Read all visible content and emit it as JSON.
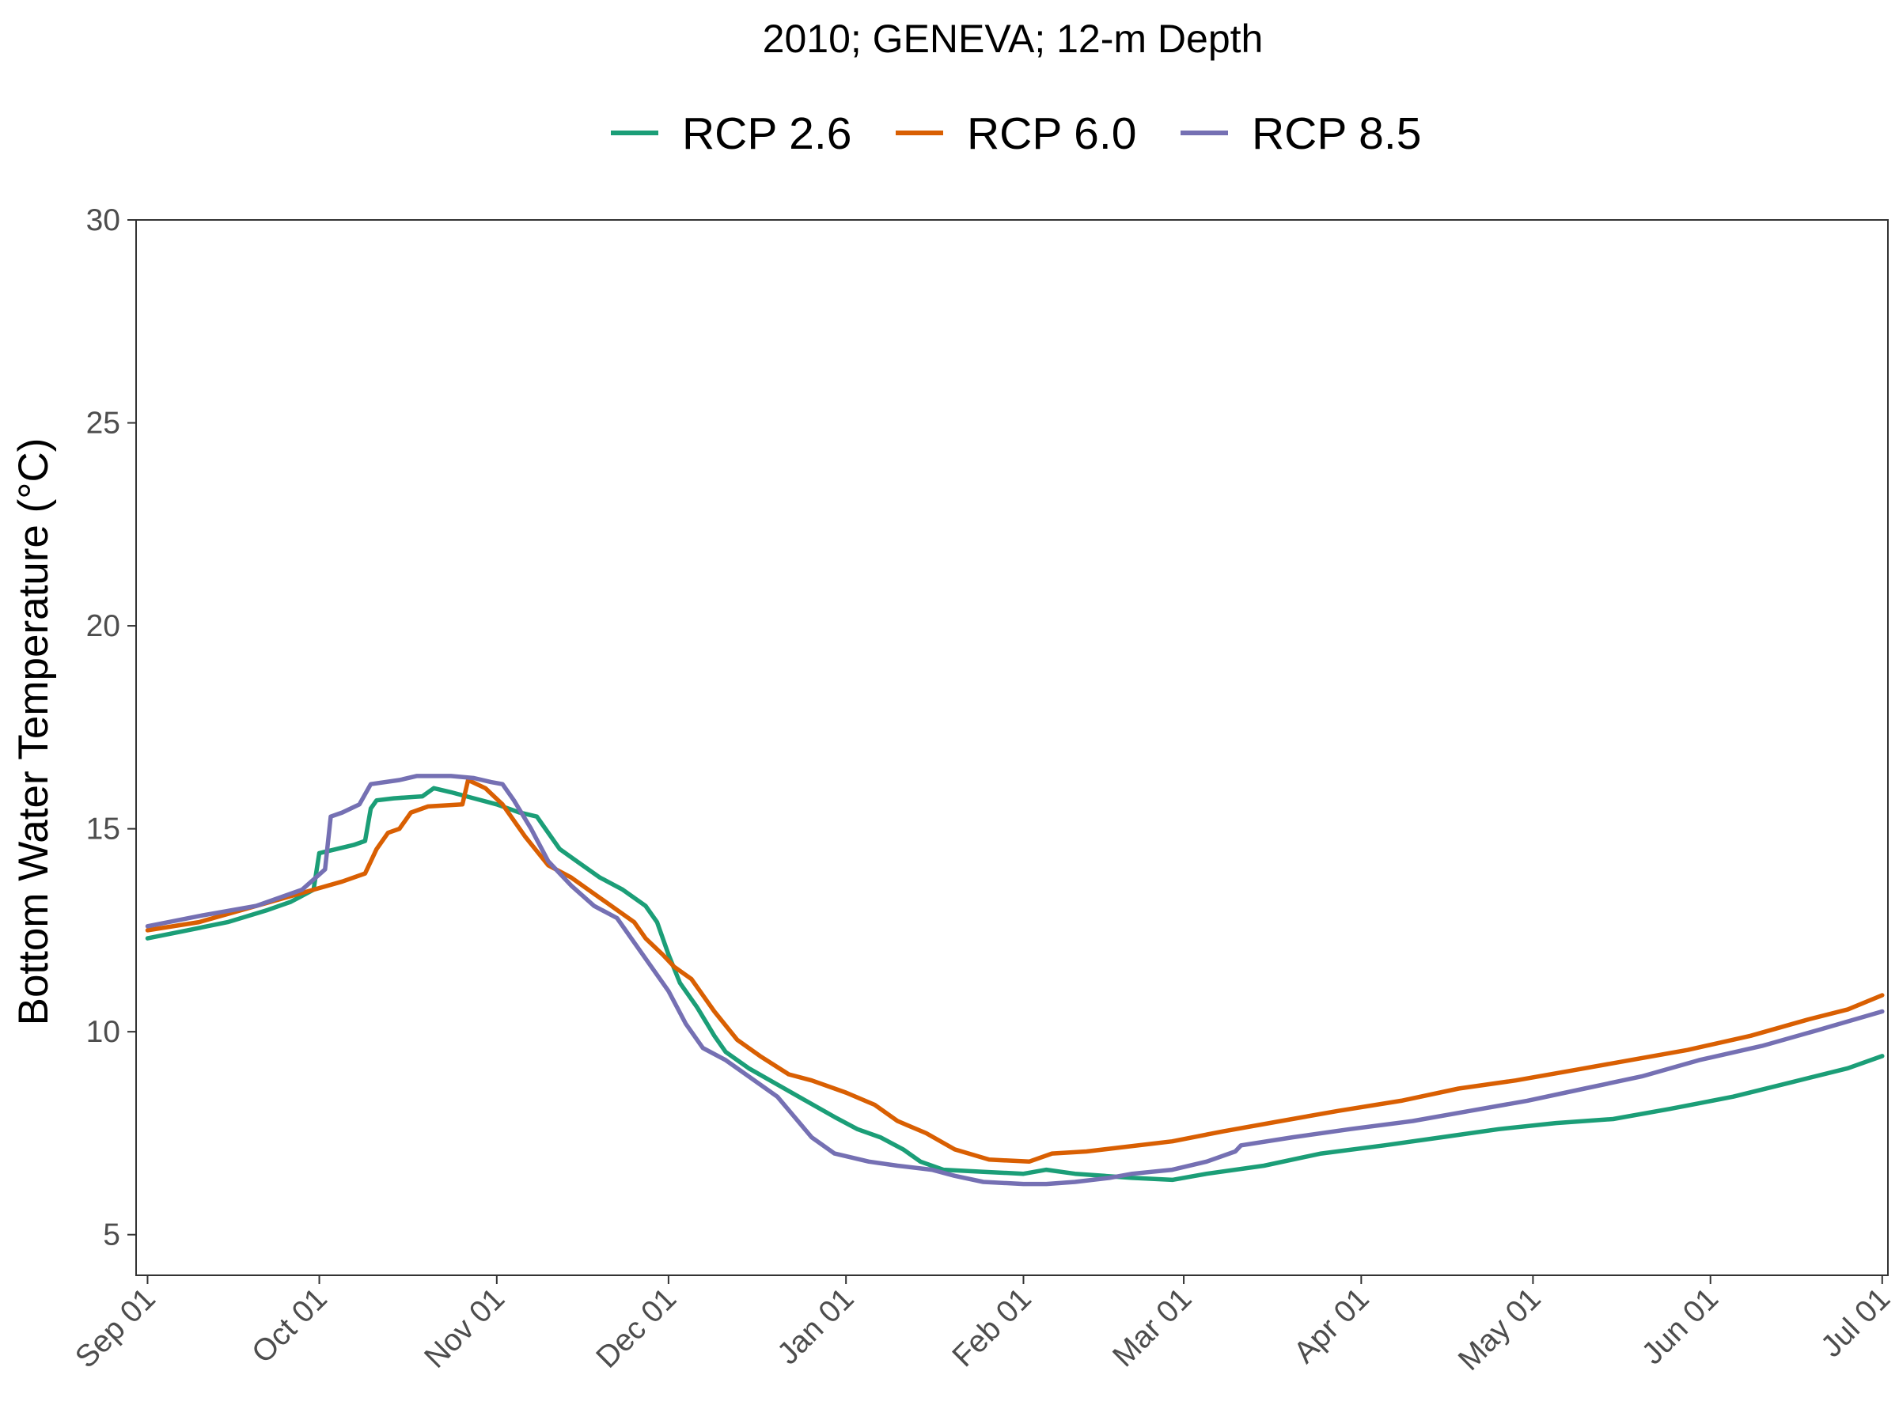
{
  "chart_data": {
    "type": "line",
    "title": "2010; GENEVA; 12-m Depth",
    "xlabel": "",
    "ylabel": "Bottom Water Temperature (°C)",
    "ylim": [
      4,
      30
    ],
    "xlim": [
      "2010-08-30",
      "2011-07-02"
    ],
    "yticks": [
      5,
      10,
      15,
      20,
      25,
      30
    ],
    "xtick_dates": [
      "2010-09-01",
      "2010-10-01",
      "2010-11-01",
      "2010-12-01",
      "2011-01-01",
      "2011-02-01",
      "2011-03-01",
      "2011-04-01",
      "2011-05-01",
      "2011-06-01",
      "2011-07-01"
    ],
    "xtick_labels": [
      "Sep 01",
      "Oct 01",
      "Nov 01",
      "Dec 01",
      "Jan 01",
      "Feb 01",
      "Mar 01",
      "Apr 01",
      "May 01",
      "Jun 01",
      "Jul 01"
    ],
    "grid": false,
    "legend_position": "top",
    "series": [
      {
        "name": "RCP 2.6",
        "color": "#1b9e77",
        "points": [
          [
            "2010-09-01",
            12.3
          ],
          [
            "2010-09-08",
            12.5
          ],
          [
            "2010-09-15",
            12.7
          ],
          [
            "2010-09-22",
            13.0
          ],
          [
            "2010-09-26",
            13.2
          ],
          [
            "2010-09-30",
            13.5
          ],
          [
            "2010-10-01",
            14.4
          ],
          [
            "2010-10-07",
            14.6
          ],
          [
            "2010-10-09",
            14.7
          ],
          [
            "2010-10-10",
            15.5
          ],
          [
            "2010-10-11",
            15.7
          ],
          [
            "2010-10-14",
            15.75
          ],
          [
            "2010-10-19",
            15.8
          ],
          [
            "2010-10-21",
            16.0
          ],
          [
            "2010-10-24",
            15.9
          ],
          [
            "2010-10-28",
            15.75
          ],
          [
            "2010-11-01",
            15.6
          ],
          [
            "2010-11-05",
            15.4
          ],
          [
            "2010-11-08",
            15.3
          ],
          [
            "2010-11-09",
            15.1
          ],
          [
            "2010-11-12",
            14.5
          ],
          [
            "2010-11-15",
            14.2
          ],
          [
            "2010-11-19",
            13.8
          ],
          [
            "2010-11-23",
            13.5
          ],
          [
            "2010-11-27",
            13.1
          ],
          [
            "2010-11-29",
            12.7
          ],
          [
            "2010-12-01",
            11.9
          ],
          [
            "2010-12-03",
            11.2
          ],
          [
            "2010-12-06",
            10.6
          ],
          [
            "2010-12-09",
            9.9
          ],
          [
            "2010-12-11",
            9.5
          ],
          [
            "2010-12-15",
            9.1
          ],
          [
            "2010-12-20",
            8.7
          ],
          [
            "2010-12-25",
            8.3
          ],
          [
            "2010-12-30",
            7.9
          ],
          [
            "2011-01-03",
            7.6
          ],
          [
            "2011-01-07",
            7.4
          ],
          [
            "2011-01-11",
            7.1
          ],
          [
            "2011-01-14",
            6.8
          ],
          [
            "2011-01-18",
            6.6
          ],
          [
            "2011-01-25",
            6.55
          ],
          [
            "2011-02-01",
            6.5
          ],
          [
            "2011-02-05",
            6.6
          ],
          [
            "2011-02-10",
            6.5
          ],
          [
            "2011-02-15",
            6.45
          ],
          [
            "2011-02-20",
            6.4
          ],
          [
            "2011-02-27",
            6.35
          ],
          [
            "2011-03-05",
            6.5
          ],
          [
            "2011-03-15",
            6.7
          ],
          [
            "2011-03-25",
            7.0
          ],
          [
            "2011-04-05",
            7.2
          ],
          [
            "2011-04-15",
            7.4
          ],
          [
            "2011-04-25",
            7.6
          ],
          [
            "2011-05-05",
            7.75
          ],
          [
            "2011-05-15",
            7.85
          ],
          [
            "2011-05-25",
            8.1
          ],
          [
            "2011-06-05",
            8.4
          ],
          [
            "2011-06-15",
            8.75
          ],
          [
            "2011-06-25",
            9.1
          ],
          [
            "2011-07-01",
            9.4
          ]
        ]
      },
      {
        "name": "RCP 6.0",
        "color": "#d95f02",
        "points": [
          [
            "2010-09-01",
            12.5
          ],
          [
            "2010-09-10",
            12.7
          ],
          [
            "2010-09-20",
            13.1
          ],
          [
            "2010-09-30",
            13.5
          ],
          [
            "2010-10-05",
            13.7
          ],
          [
            "2010-10-09",
            13.9
          ],
          [
            "2010-10-11",
            14.5
          ],
          [
            "2010-10-13",
            14.9
          ],
          [
            "2010-10-15",
            15.0
          ],
          [
            "2010-10-17",
            15.4
          ],
          [
            "2010-10-20",
            15.55
          ],
          [
            "2010-10-26",
            15.6
          ],
          [
            "2010-10-27",
            16.2
          ],
          [
            "2010-10-30",
            16.0
          ],
          [
            "2010-11-02",
            15.6
          ],
          [
            "2010-11-06",
            14.8
          ],
          [
            "2010-11-10",
            14.1
          ],
          [
            "2010-11-14",
            13.8
          ],
          [
            "2010-11-18",
            13.4
          ],
          [
            "2010-11-22",
            13.0
          ],
          [
            "2010-11-25",
            12.7
          ],
          [
            "2010-11-27",
            12.3
          ],
          [
            "2010-11-30",
            11.9
          ],
          [
            "2010-12-02",
            11.6
          ],
          [
            "2010-12-05",
            11.3
          ],
          [
            "2010-12-09",
            10.5
          ],
          [
            "2010-12-13",
            9.8
          ],
          [
            "2010-12-17",
            9.4
          ],
          [
            "2010-12-22",
            8.95
          ],
          [
            "2010-12-26",
            8.8
          ],
          [
            "2011-01-01",
            8.5
          ],
          [
            "2011-01-06",
            8.2
          ],
          [
            "2011-01-10",
            7.8
          ],
          [
            "2011-01-15",
            7.5
          ],
          [
            "2011-01-20",
            7.1
          ],
          [
            "2011-01-26",
            6.85
          ],
          [
            "2011-02-02",
            6.8
          ],
          [
            "2011-02-06",
            7.0
          ],
          [
            "2011-02-12",
            7.05
          ],
          [
            "2011-02-18",
            7.15
          ],
          [
            "2011-02-27",
            7.3
          ],
          [
            "2011-03-08",
            7.55
          ],
          [
            "2011-03-18",
            7.8
          ],
          [
            "2011-03-28",
            8.05
          ],
          [
            "2011-04-08",
            8.3
          ],
          [
            "2011-04-18",
            8.6
          ],
          [
            "2011-04-28",
            8.8
          ],
          [
            "2011-05-08",
            9.05
          ],
          [
            "2011-05-18",
            9.3
          ],
          [
            "2011-05-28",
            9.55
          ],
          [
            "2011-06-08",
            9.9
          ],
          [
            "2011-06-18",
            10.3
          ],
          [
            "2011-06-25",
            10.55
          ],
          [
            "2011-07-01",
            10.9
          ]
        ]
      },
      {
        "name": "RCP 8.5",
        "color": "#7570b3",
        "points": [
          [
            "2010-09-01",
            12.6
          ],
          [
            "2010-09-10",
            12.85
          ],
          [
            "2010-09-20",
            13.1
          ],
          [
            "2010-09-28",
            13.5
          ],
          [
            "2010-10-02",
            14.0
          ],
          [
            "2010-10-03",
            15.3
          ],
          [
            "2010-10-05",
            15.4
          ],
          [
            "2010-10-08",
            15.6
          ],
          [
            "2010-10-10",
            16.1
          ],
          [
            "2010-10-15",
            16.2
          ],
          [
            "2010-10-18",
            16.3
          ],
          [
            "2010-10-24",
            16.3
          ],
          [
            "2010-10-28",
            16.25
          ],
          [
            "2010-10-31",
            16.15
          ],
          [
            "2010-11-02",
            16.1
          ],
          [
            "2010-11-04",
            15.7
          ],
          [
            "2010-11-07",
            15.0
          ],
          [
            "2010-11-10",
            14.2
          ],
          [
            "2010-11-14",
            13.6
          ],
          [
            "2010-11-18",
            13.1
          ],
          [
            "2010-11-22",
            12.8
          ],
          [
            "2010-11-25",
            12.2
          ],
          [
            "2010-11-28",
            11.6
          ],
          [
            "2010-12-01",
            11.0
          ],
          [
            "2010-12-04",
            10.2
          ],
          [
            "2010-12-07",
            9.6
          ],
          [
            "2010-12-11",
            9.3
          ],
          [
            "2010-12-15",
            8.9
          ],
          [
            "2010-12-20",
            8.4
          ],
          [
            "2010-12-23",
            7.9
          ],
          [
            "2010-12-26",
            7.4
          ],
          [
            "2010-12-30",
            7.0
          ],
          [
            "2011-01-05",
            6.8
          ],
          [
            "2011-01-10",
            6.7
          ],
          [
            "2011-01-16",
            6.6
          ],
          [
            "2011-01-20",
            6.45
          ],
          [
            "2011-01-25",
            6.3
          ],
          [
            "2011-02-01",
            6.25
          ],
          [
            "2011-02-05",
            6.25
          ],
          [
            "2011-02-10",
            6.3
          ],
          [
            "2011-02-16",
            6.4
          ],
          [
            "2011-02-20",
            6.5
          ],
          [
            "2011-02-27",
            6.6
          ],
          [
            "2011-03-05",
            6.8
          ],
          [
            "2011-03-10",
            7.05
          ],
          [
            "2011-03-11",
            7.2
          ],
          [
            "2011-03-20",
            7.4
          ],
          [
            "2011-03-30",
            7.6
          ],
          [
            "2011-04-10",
            7.8
          ],
          [
            "2011-04-20",
            8.05
          ],
          [
            "2011-04-30",
            8.3
          ],
          [
            "2011-05-10",
            8.6
          ],
          [
            "2011-05-20",
            8.9
          ],
          [
            "2011-05-30",
            9.3
          ],
          [
            "2011-06-10",
            9.65
          ],
          [
            "2011-06-20",
            10.05
          ],
          [
            "2011-07-01",
            10.5
          ]
        ]
      }
    ]
  }
}
